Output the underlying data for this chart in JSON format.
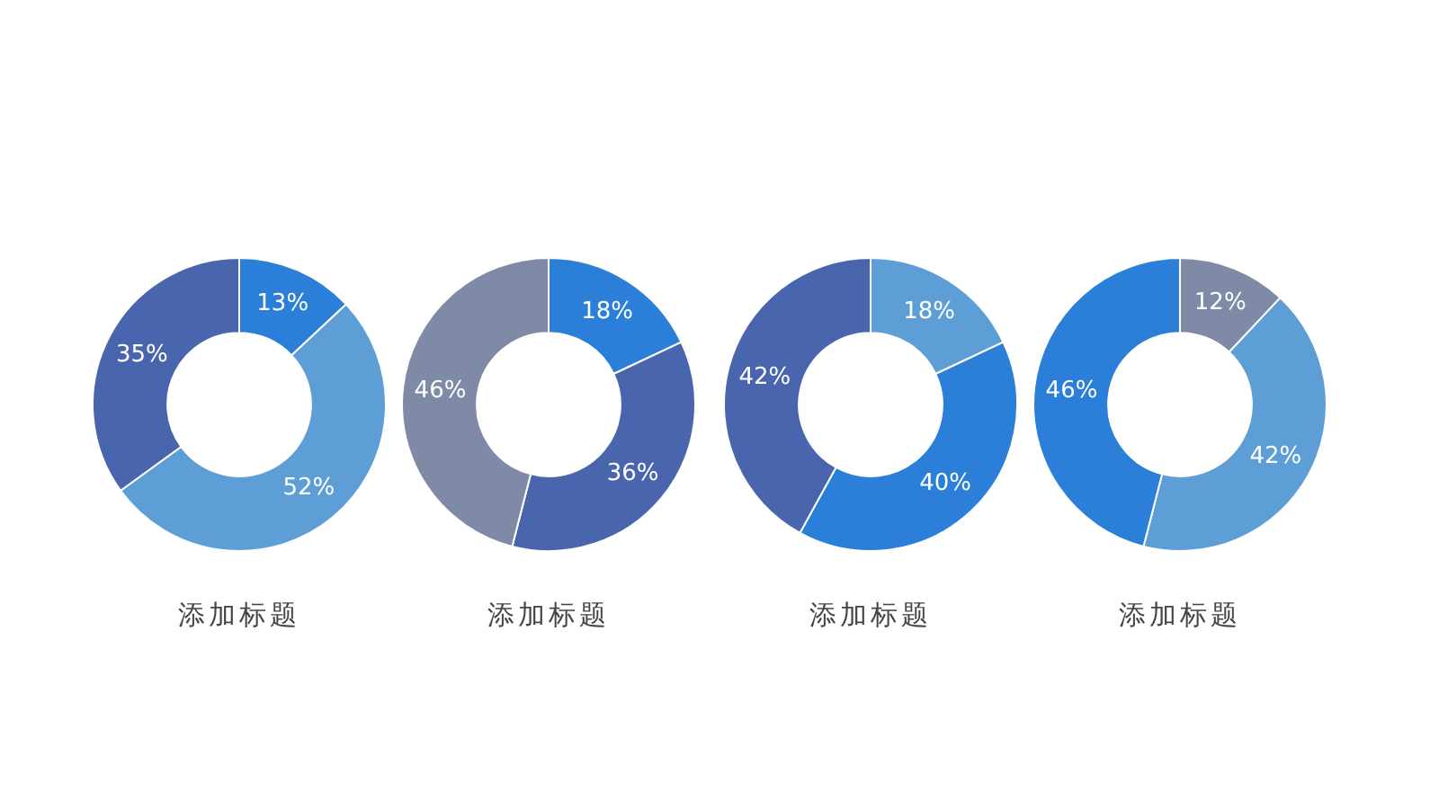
{
  "chart_data": [
    {
      "type": "donut",
      "title": "添加标题",
      "categories": [
        null,
        null,
        null
      ],
      "values": [
        13,
        52,
        35
      ],
      "colors": [
        "#2b7fd8",
        "#5e9ed6",
        "#4865ad"
      ],
      "value_labels": [
        "13%",
        "52%",
        "35%"
      ]
    },
    {
      "type": "donut",
      "title": "添加标题",
      "categories": [
        null,
        null,
        null
      ],
      "values": [
        18,
        36,
        46
      ],
      "colors": [
        "#2b7fd8",
        "#4865ad",
        "#7f8aa6"
      ],
      "value_labels": [
        "18%",
        "36%",
        "46%"
      ]
    },
    {
      "type": "donut",
      "title": "添加标题",
      "categories": [
        null,
        null,
        null
      ],
      "values": [
        18,
        40,
        42
      ],
      "colors": [
        "#5e9ed6",
        "#2b7fd8",
        "#4865ad"
      ],
      "value_labels": [
        "18%",
        "40%",
        "42%"
      ]
    },
    {
      "type": "donut",
      "title": "添加标题",
      "categories": [
        null,
        null,
        null
      ],
      "values": [
        12,
        42,
        46
      ],
      "colors": [
        "#7f8aa6",
        "#5e9ed6",
        "#2b7fd8"
      ],
      "value_labels": [
        "12%",
        "42%",
        "46%"
      ]
    }
  ]
}
